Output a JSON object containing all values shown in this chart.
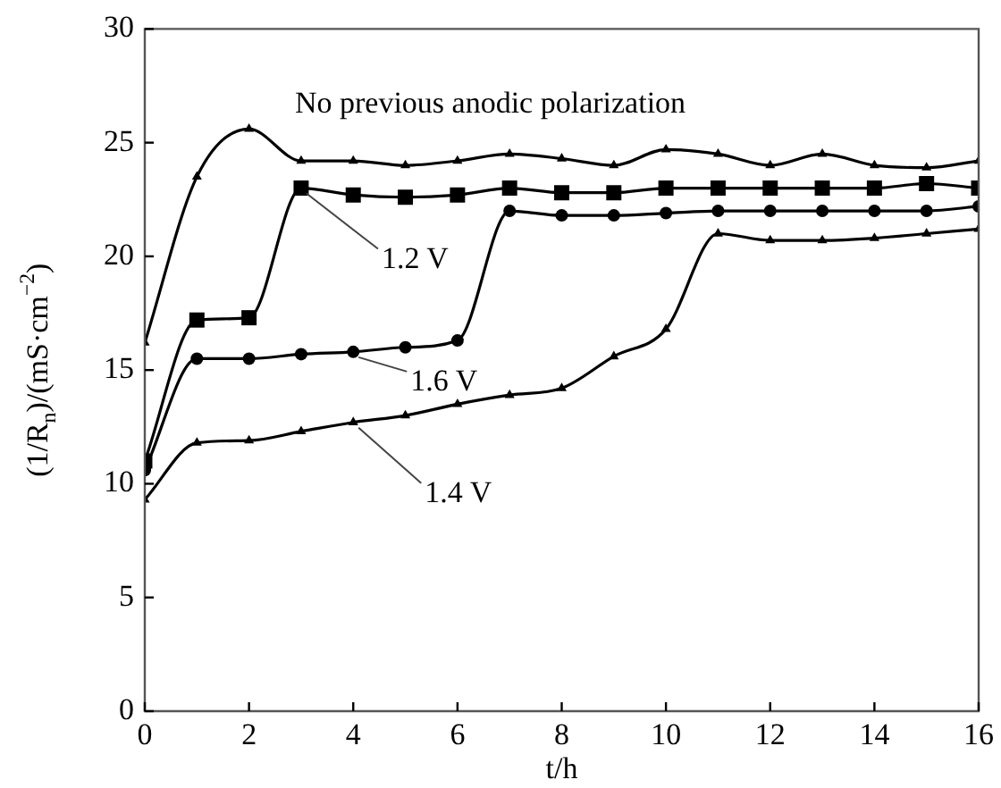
{
  "chart_data": {
    "type": "line",
    "xlabel": "t/h",
    "ylabel": "(1/R$_{n}$)/(mS·cm$^{−2}$)",
    "x": [
      0,
      1,
      2,
      3,
      4,
      5,
      6,
      7,
      8,
      9,
      10,
      11,
      12,
      13,
      14,
      15,
      16
    ],
    "xlim": [
      0,
      16
    ],
    "xticks": [
      0,
      2,
      4,
      6,
      8,
      10,
      12,
      14,
      16
    ],
    "ylim": [
      0,
      30
    ],
    "yticks": [
      0,
      5,
      10,
      15,
      20,
      25,
      30
    ],
    "grid": false,
    "legend": false,
    "series": [
      {
        "name": "No previous anodic polarization",
        "color": "#000000",
        "marker": "triangle",
        "values": [
          16.2,
          23.5,
          25.6,
          24.2,
          24.2,
          24.0,
          24.2,
          24.5,
          24.3,
          24.0,
          24.7,
          24.5,
          24.0,
          24.5,
          24.0,
          23.9,
          24.2
        ]
      },
      {
        "name": "1.2 V",
        "color": "#000000",
        "marker": "square",
        "values": [
          11.0,
          17.2,
          17.3,
          23.0,
          22.7,
          22.6,
          22.7,
          23.0,
          22.8,
          22.8,
          23.0,
          23.0,
          23.0,
          23.0,
          23.0,
          23.2,
          23.0
        ]
      },
      {
        "name": "1.6 V",
        "color": "#000000",
        "marker": "circle",
        "values": [
          10.6,
          15.5,
          15.5,
          15.7,
          15.8,
          16.0,
          16.3,
          22.0,
          21.8,
          21.8,
          21.9,
          22.0,
          22.0,
          22.0,
          22.0,
          22.0,
          22.2
        ]
      },
      {
        "name": "1.4 V",
        "color": "#000000",
        "marker": "triangle",
        "values": [
          9.3,
          11.8,
          11.9,
          12.3,
          12.7,
          13.0,
          13.5,
          13.9,
          14.2,
          15.6,
          16.8,
          21.0,
          20.7,
          20.7,
          20.8,
          21.0,
          21.2
        ]
      }
    ]
  }
}
